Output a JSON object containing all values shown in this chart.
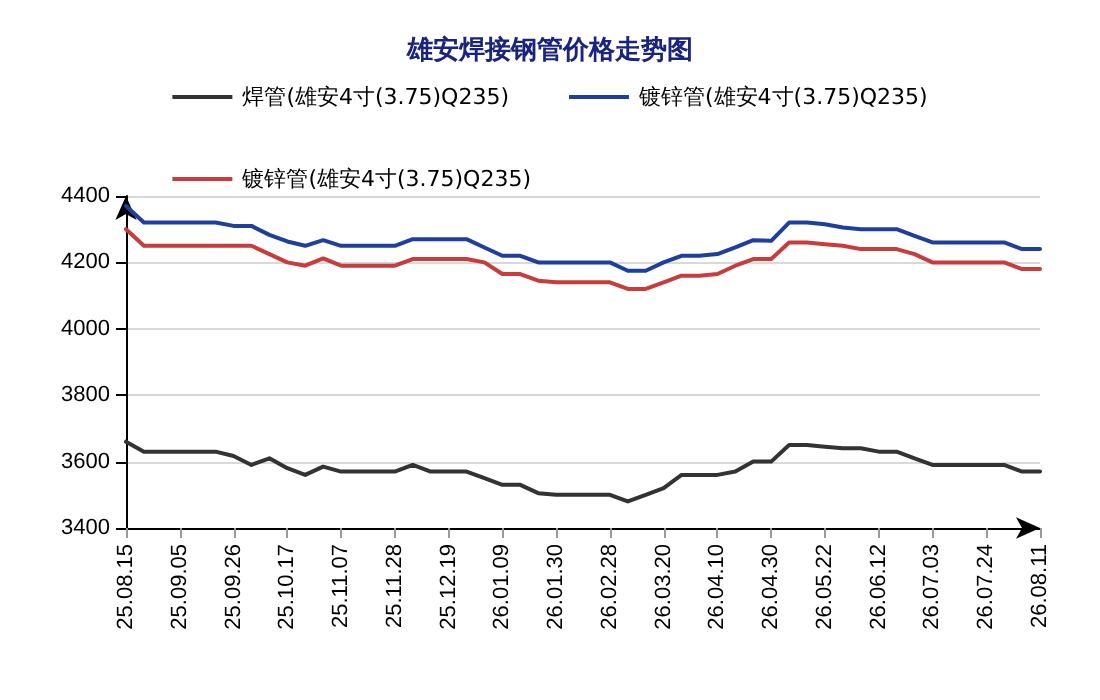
{
  "chart_data": {
    "type": "line",
    "title": "雄安焊接钢管价格走势图",
    "categories": [
      "25.08.15",
      null,
      null,
      "25.09.05",
      null,
      null,
      "25.09.26",
      null,
      null,
      "25.10.17",
      null,
      null,
      "25.11.07",
      null,
      null,
      "25.11.28",
      null,
      null,
      "25.12.19",
      null,
      null,
      "26.01.09",
      null,
      null,
      "26.01.30",
      null,
      null,
      "26.02.28",
      null,
      null,
      "26.03.20",
      null,
      null,
      "26.04.10",
      null,
      null,
      "26.04.30",
      null,
      null,
      "26.05.22",
      null,
      null,
      "26.06.12",
      null,
      null,
      "26.07.03",
      null,
      null,
      "26.07.24",
      null,
      null,
      "26.08.11"
    ],
    "series": [
      {
        "name": "焊管(雄安4寸(3.75)Q235)",
        "color": "#333333",
        "values": [
          3660,
          3630,
          3630,
          3630,
          3630,
          3630,
          3617,
          3590,
          3610,
          3580,
          3560,
          3585,
          3570,
          3570,
          3570,
          3570,
          3590,
          3570,
          3570,
          3570,
          3550,
          3530,
          3530,
          3505,
          3500,
          3500,
          3500,
          3500,
          3480,
          3500,
          3520,
          3560,
          3560,
          3560,
          3570,
          3600,
          3600,
          3650,
          3650,
          3645,
          3640,
          3640,
          3630,
          3630,
          3610,
          3590,
          3590,
          3590,
          3590,
          3590,
          3570,
          3570
        ]
      },
      {
        "name": "镀锌管(雄安4寸(3.75)Q235)",
        "color": "#1f3f9f",
        "values": [
          4370,
          4320,
          4320,
          4320,
          4320,
          4320,
          4310,
          4310,
          4283,
          4263,
          4250,
          4267,
          4250,
          4250,
          4250,
          4250,
          4270,
          4270,
          4270,
          4270,
          4245,
          4220,
          4220,
          4200,
          4200,
          4200,
          4200,
          4200,
          4175,
          4175,
          4200,
          4220,
          4220,
          4225,
          4245,
          4267,
          4265,
          4320,
          4320,
          4315,
          4305,
          4300,
          4300,
          4300,
          4280,
          4260,
          4260,
          4260,
          4260,
          4260,
          4240,
          4240
        ]
      },
      {
        "name": "镀锌管(雄安4寸(3.75)Q235)",
        "color": "#c83c3c",
        "values": [
          4300,
          4250,
          4250,
          4250,
          4250,
          4250,
          4250,
          4250,
          4225,
          4200,
          4190,
          4212,
          4190,
          4190,
          4190,
          4190,
          4210,
          4210,
          4210,
          4210,
          4200,
          4165,
          4165,
          4145,
          4140,
          4140,
          4140,
          4140,
          4120,
          4120,
          4140,
          4160,
          4160,
          4165,
          4190,
          4210,
          4210,
          4260,
          4260,
          4255,
          4250,
          4240,
          4240,
          4240,
          4225,
          4200,
          4200,
          4200,
          4200,
          4200,
          4180,
          4180
        ]
      }
    ],
    "ylim": [
      3400,
      4400
    ],
    "yticks": [
      3400,
      3600,
      3800,
      4000,
      4200,
      4400
    ],
    "grid": "y",
    "legend": "top",
    "marker": "none",
    "line_style": "solid"
  }
}
